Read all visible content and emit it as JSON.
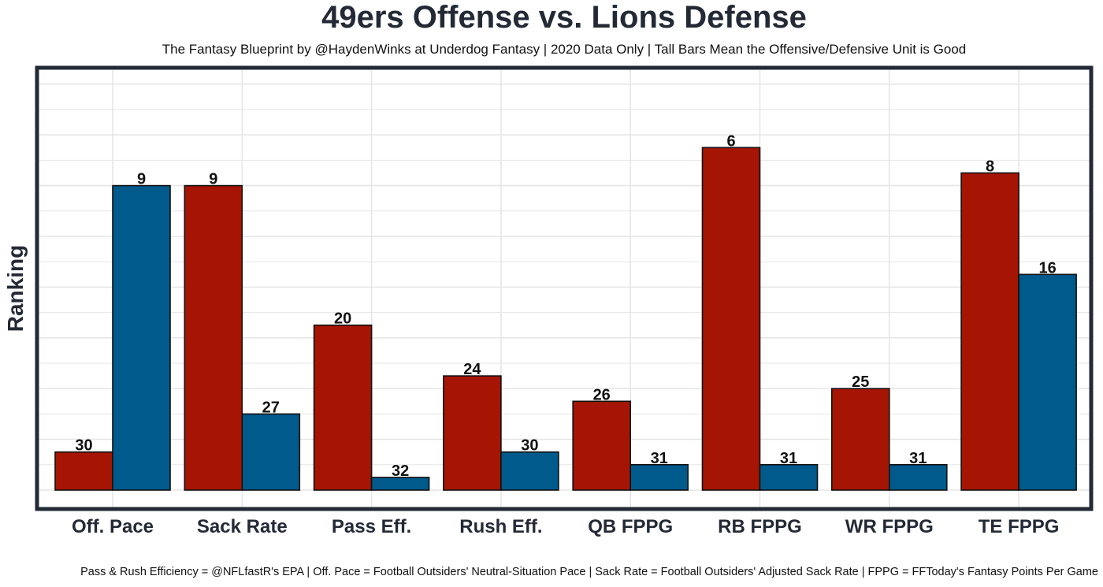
{
  "chart_data": {
    "type": "bar",
    "title": "49ers Offense vs. Lions Defense",
    "subtitle": "The Fantasy Blueprint by @HaydenWinks at Underdog Fantasy | 2020 Data Only | Tall Bars Mean the Offensive/Defensive Unit is Good",
    "ylabel": "Ranking",
    "caption": "Pass & Rush Efficiency = @NFLfastR's EPA | Off. Pace = Football Outsiders' Neutral-Situation Pace | Sack Rate = Football Outsiders' Adjusted Sack Rate | FPPG = FFToday's Fantasy Points Per Game",
    "categories": [
      "Off. Pace",
      "Sack Rate",
      "Pass Eff.",
      "Rush Eff.",
      "QB FPPG",
      "RB FPPG",
      "WR FPPG",
      "TE FPPG"
    ],
    "series": [
      {
        "values": [
          30,
          9,
          20,
          24,
          26,
          6,
          25,
          8
        ],
        "color": "#a61503"
      },
      {
        "values": [
          9,
          27,
          32,
          30,
          31,
          31,
          31,
          16
        ],
        "color": "#005a8c"
      }
    ],
    "y_scale": "reversed rank (rank 1 = tallest bar, rank 33 = baseline)",
    "ylim": [
      33,
      1
    ],
    "grid": true,
    "legend": "none"
  }
}
